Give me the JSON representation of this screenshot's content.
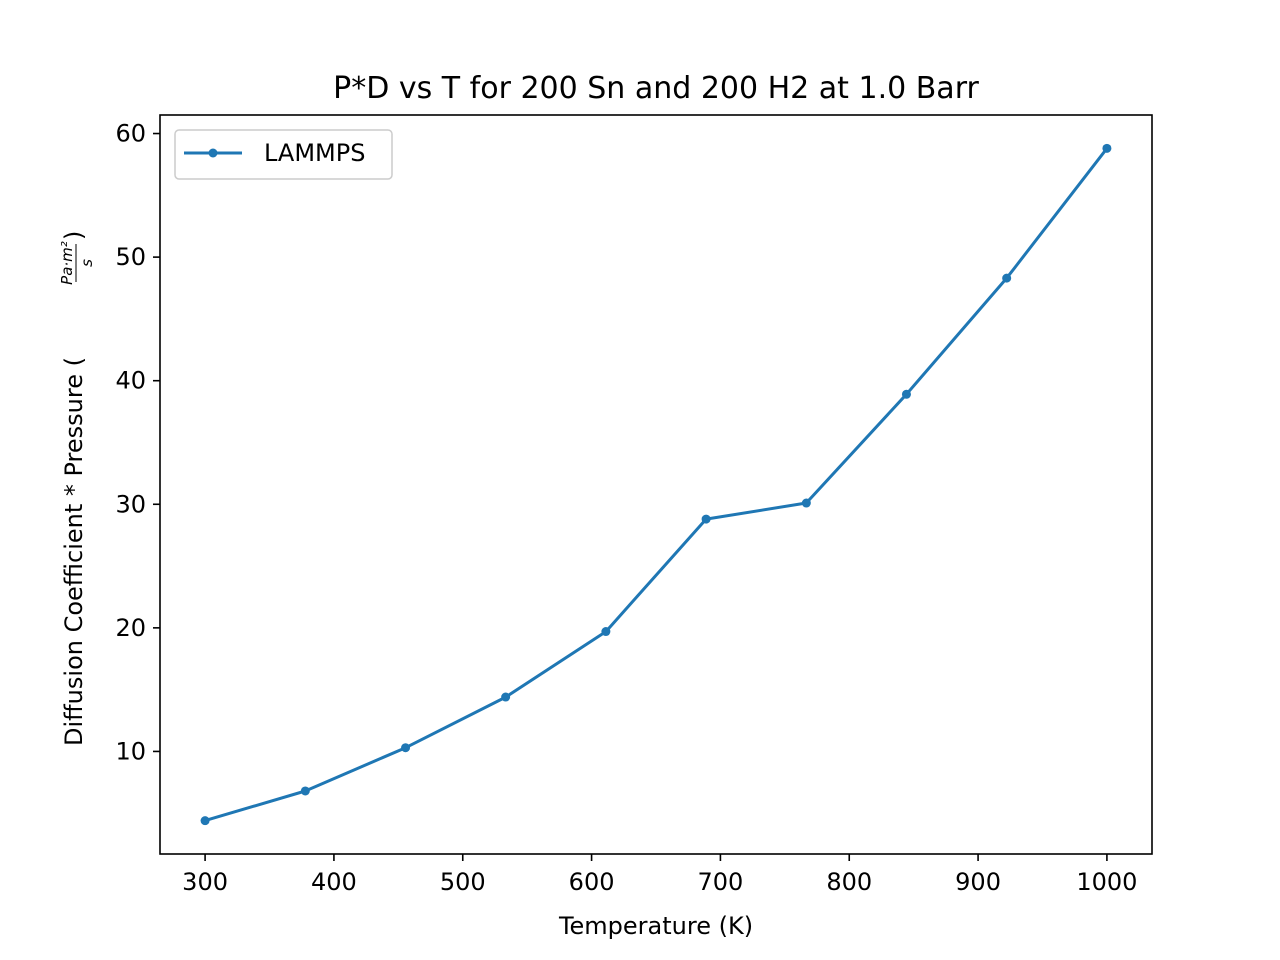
{
  "chart_data": {
    "type": "line",
    "title": "P*D vs T for 200 Sn and 200 H2 at 1.0 Barr",
    "xlabel": "Temperature (K)",
    "ylabel_text": "Diffusion Coefficient * Pressure (",
    "ylabel_fraction_numerator": "Pa·m²",
    "ylabel_fraction_denominator": "s",
    "ylabel_close": ")",
    "xlim": [
      265,
      1035
    ],
    "ylim": [
      1.7,
      61.5
    ],
    "xticks": [
      300,
      400,
      500,
      600,
      700,
      800,
      900,
      1000
    ],
    "yticks": [
      10,
      20,
      30,
      40,
      50,
      60
    ],
    "grid": false,
    "legend_position": "top-left",
    "series": [
      {
        "name": "LAMMPS",
        "color": "#1f77b4",
        "x": [
          300,
          377.8,
          455.6,
          533.3,
          611.1,
          688.9,
          766.7,
          844.4,
          922.2,
          1000
        ],
        "y": [
          4.4,
          6.8,
          10.3,
          14.4,
          19.7,
          28.8,
          30.1,
          38.9,
          48.3,
          58.8
        ]
      }
    ]
  }
}
